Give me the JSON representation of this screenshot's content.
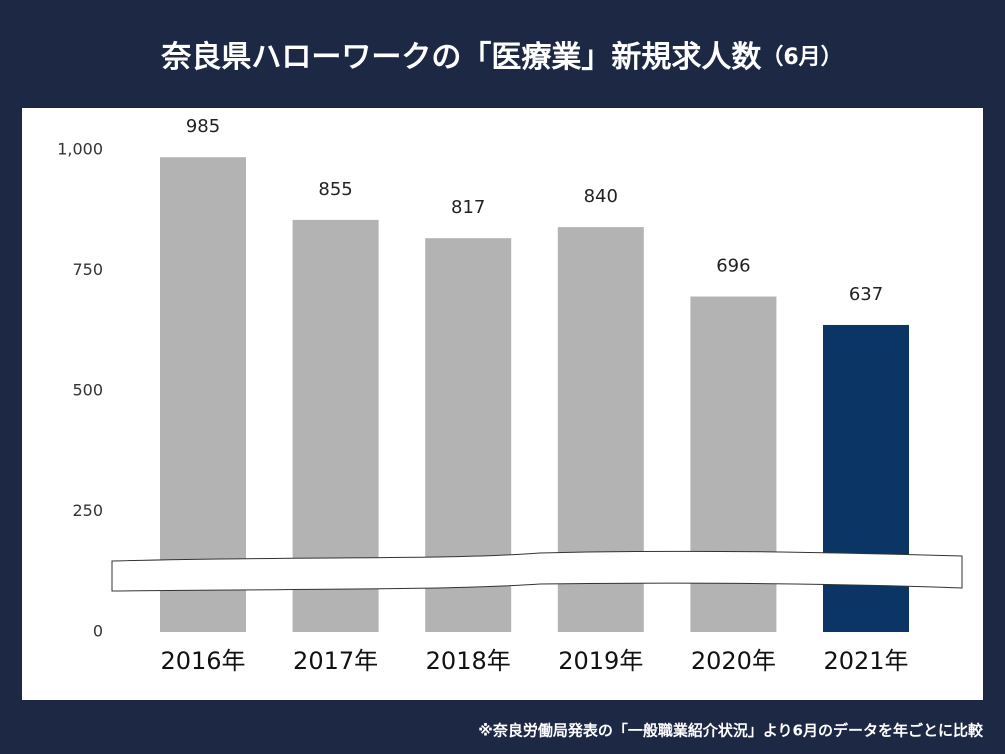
{
  "chart_data": {
    "type": "bar",
    "title": "奈良県ハローワークの「医療業」新規求人数",
    "title_note": "（6月）",
    "categories": [
      "2016年",
      "2017年",
      "2018年",
      "2019年",
      "2020年",
      "2021年"
    ],
    "values": [
      985,
      855,
      817,
      840,
      696,
      637
    ],
    "colors": [
      "#b3b3b3",
      "#b3b3b3",
      "#b3b3b3",
      "#b3b3b3",
      "#b3b3b3",
      "#0b3564"
    ],
    "ylim": [
      0,
      1000
    ],
    "yticks": [
      0,
      250,
      500,
      750,
      {
        "value": 1000,
        "label": "1,000"
      }
    ],
    "grid": false,
    "footnote": "※奈良労働局発表の「一般職業紹介状況」より6月のデータを年ごとに比較"
  }
}
